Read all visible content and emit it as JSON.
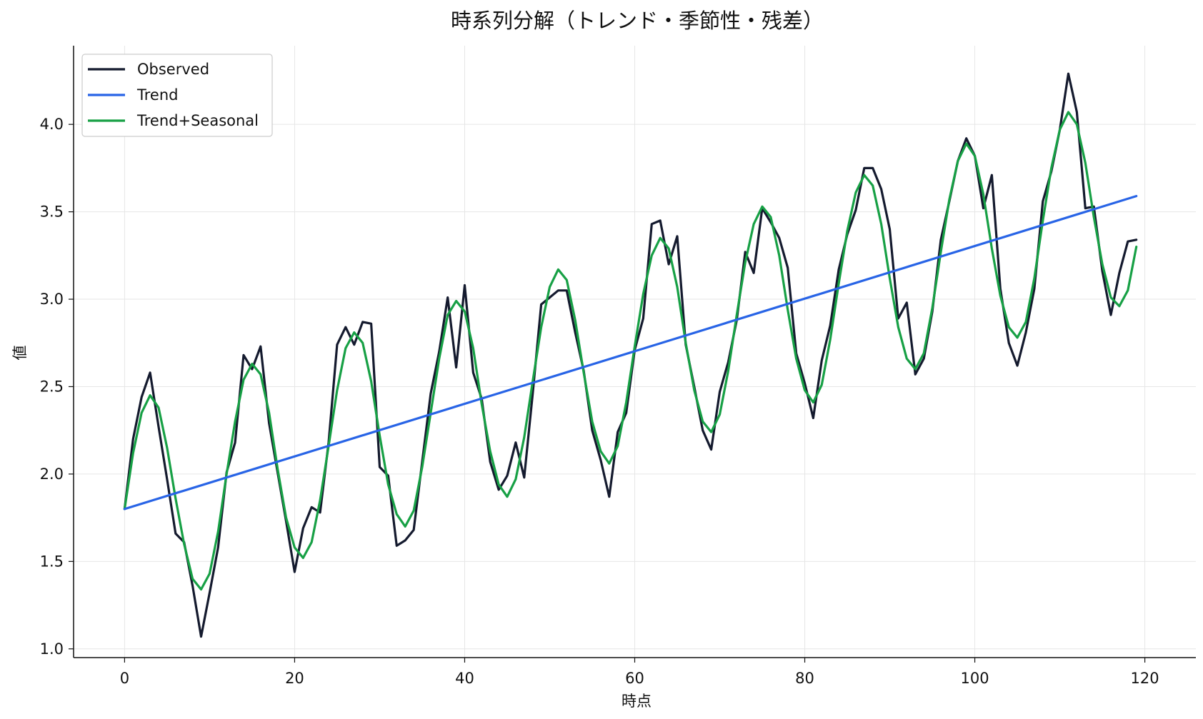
{
  "chart_data": {
    "type": "line",
    "title": "時系列分解（トレンド・季節性・残差）",
    "xlabel": "時点",
    "ylabel": "値",
    "xlim": [
      -6,
      126
    ],
    "ylim": [
      0.95,
      4.45
    ],
    "xticks": [
      0,
      20,
      40,
      60,
      80,
      100,
      120
    ],
    "yticks": [
      1.0,
      1.5,
      2.0,
      2.5,
      3.0,
      3.5,
      4.0
    ],
    "grid": true,
    "legend": "upper-left",
    "series": [
      {
        "name": "Observed",
        "color": "#141a2e",
        "x": [
          0,
          1,
          2,
          3,
          4,
          5,
          6,
          7,
          8,
          9,
          10,
          11,
          12,
          13,
          14,
          15,
          16,
          17,
          18,
          19,
          20,
          21,
          22,
          23,
          24,
          25,
          26,
          27,
          28,
          29,
          30,
          31,
          32,
          33,
          34,
          35,
          36,
          37,
          38,
          39,
          40,
          41,
          42,
          43,
          44,
          45,
          46,
          47,
          48,
          49,
          50,
          51,
          52,
          53,
          54,
          55,
          56,
          57,
          58,
          59,
          60,
          61,
          62,
          63,
          64,
          65,
          66,
          67,
          68,
          69,
          70,
          71,
          72,
          73,
          74,
          75,
          76,
          77,
          78,
          79,
          80,
          81,
          82,
          83,
          84,
          85,
          86,
          87,
          88,
          89,
          90,
          91,
          92,
          93,
          94,
          95,
          96,
          97,
          98,
          99,
          100,
          101,
          102,
          103,
          104,
          105,
          106,
          107,
          108,
          109,
          110,
          111,
          112,
          113,
          114,
          115,
          116,
          117,
          118,
          119
        ],
        "values": [
          1.8,
          2.2,
          2.44,
          2.58,
          2.27,
          1.97,
          1.66,
          1.61,
          1.36,
          1.07,
          1.32,
          1.58,
          2.01,
          2.18,
          2.68,
          2.6,
          2.73,
          2.29,
          2.01,
          1.73,
          1.44,
          1.69,
          1.81,
          1.78,
          2.18,
          2.74,
          2.84,
          2.74,
          2.87,
          2.86,
          2.04,
          1.99,
          1.59,
          1.62,
          1.68,
          2.07,
          2.46,
          2.7,
          3.01,
          2.61,
          3.08,
          2.58,
          2.43,
          2.07,
          1.91,
          1.99,
          2.18,
          1.98,
          2.46,
          2.97,
          3.01,
          3.05,
          3.05,
          2.81,
          2.59,
          2.25,
          2.08,
          1.87,
          2.24,
          2.35,
          2.71,
          2.89,
          3.43,
          3.45,
          3.2,
          3.36,
          2.74,
          2.5,
          2.25,
          2.14,
          2.47,
          2.64,
          2.88,
          3.27,
          3.15,
          3.52,
          3.44,
          3.35,
          3.18,
          2.69,
          2.52,
          2.32,
          2.65,
          2.85,
          3.17,
          3.37,
          3.51,
          3.75,
          3.75,
          3.63,
          3.4,
          2.89,
          2.98,
          2.57,
          2.66,
          2.93,
          3.34,
          3.56,
          3.79,
          3.92,
          3.82,
          3.52,
          3.71,
          3.06,
          2.75,
          2.62,
          2.81,
          3.06,
          3.56,
          3.73,
          3.97,
          4.29,
          4.07,
          3.52,
          3.53,
          3.16,
          2.91,
          3.15,
          3.33,
          3.34
        ]
      },
      {
        "name": "Trend",
        "color": "#2864e6",
        "x": [
          0,
          119
        ],
        "values": [
          1.8,
          3.59
        ]
      },
      {
        "name": "Trend+Seasonal",
        "color": "#17a045",
        "x": [
          0,
          1,
          2,
          3,
          4,
          5,
          6,
          7,
          8,
          9,
          10,
          11,
          12,
          13,
          14,
          15,
          16,
          17,
          18,
          19,
          20,
          21,
          22,
          23,
          24,
          25,
          26,
          27,
          28,
          29,
          30,
          31,
          32,
          33,
          34,
          35,
          36,
          37,
          38,
          39,
          40,
          41,
          42,
          43,
          44,
          45,
          46,
          47,
          48,
          49,
          50,
          51,
          52,
          53,
          54,
          55,
          56,
          57,
          58,
          59,
          60,
          61,
          62,
          63,
          64,
          65,
          66,
          67,
          68,
          69,
          70,
          71,
          72,
          73,
          74,
          75,
          76,
          77,
          78,
          79,
          80,
          81,
          82,
          83,
          84,
          85,
          86,
          87,
          88,
          89,
          90,
          91,
          92,
          93,
          94,
          95,
          96,
          97,
          98,
          99,
          100,
          101,
          102,
          103,
          104,
          105,
          106,
          107,
          108,
          109,
          110,
          111,
          112,
          113,
          114,
          115,
          116,
          117,
          118,
          119
        ],
        "values": [
          1.8,
          2.12,
          2.35,
          2.45,
          2.38,
          2.15,
          1.86,
          1.6,
          1.4,
          1.34,
          1.43,
          1.67,
          2.0,
          2.3,
          2.54,
          2.63,
          2.57,
          2.35,
          2.03,
          1.75,
          1.58,
          1.52,
          1.61,
          1.85,
          2.16,
          2.48,
          2.72,
          2.81,
          2.75,
          2.53,
          2.22,
          1.94,
          1.77,
          1.7,
          1.79,
          2.04,
          2.35,
          2.66,
          2.91,
          2.99,
          2.93,
          2.72,
          2.4,
          2.13,
          1.94,
          1.87,
          1.97,
          2.21,
          2.53,
          2.84,
          3.07,
          3.17,
          3.11,
          2.88,
          2.58,
          2.3,
          2.13,
          2.06,
          2.16,
          2.41,
          2.73,
          3.03,
          3.25,
          3.35,
          3.29,
          3.07,
          2.75,
          2.48,
          2.3,
          2.24,
          2.34,
          2.59,
          2.91,
          3.21,
          3.43,
          3.53,
          3.47,
          3.25,
          2.94,
          2.66,
          2.48,
          2.41,
          2.51,
          2.77,
          3.09,
          3.39,
          3.61,
          3.71,
          3.65,
          3.43,
          3.12,
          2.84,
          2.66,
          2.6,
          2.69,
          2.95,
          3.27,
          3.57,
          3.79,
          3.89,
          3.82,
          3.6,
          3.29,
          3.02,
          2.84,
          2.78,
          2.87,
          3.12,
          3.45,
          3.75,
          3.97,
          4.07,
          4.0,
          3.78,
          3.47,
          3.2,
          3.01,
          2.96,
          3.05,
          3.3
        ]
      }
    ]
  }
}
